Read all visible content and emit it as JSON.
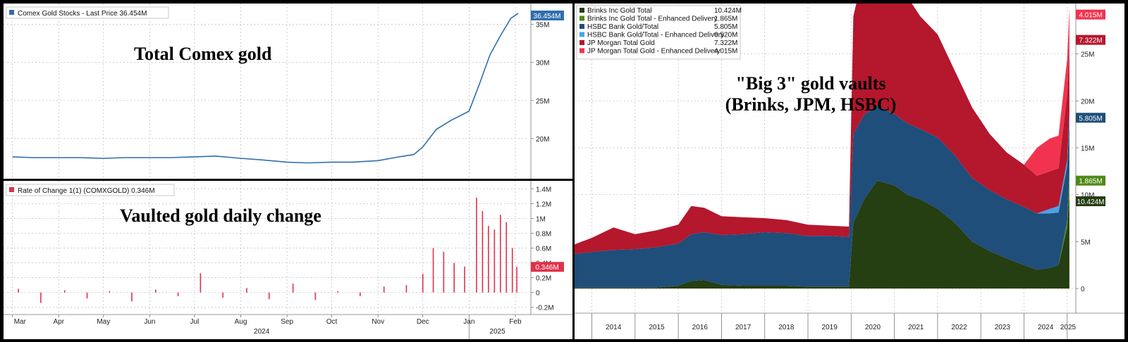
{
  "left_top": {
    "legend": "Comex Gold Stocks - Last Price 36.454M",
    "annotation": "Total Comex gold",
    "last_tag": "36.454M",
    "tag_color": "#2f6fad"
  },
  "left_bottom": {
    "legend": "Rate of Change 1(1) (COMXGOLD) 0.346M",
    "annotation": "Vaulted gold daily change",
    "last_tag": "0.346M",
    "tag_color": "#e0314b"
  },
  "right": {
    "annotation_line1": "\"Big 3\" gold vaults",
    "annotation_line2": "(Brinks, JPM, HSBC)"
  },
  "chart_data": [
    {
      "type": "line",
      "x": [
        "2024-03-01",
        "2024-03-15",
        "2024-04-01",
        "2024-04-15",
        "2024-05-01",
        "2024-05-15",
        "2024-06-01",
        "2024-06-15",
        "2024-07-01",
        "2024-07-15",
        "2024-08-01",
        "2024-08-15",
        "2024-09-01",
        "2024-09-15",
        "2024-10-01",
        "2024-10-15",
        "2024-11-01",
        "2024-11-15",
        "2024-11-25",
        "2024-12-01",
        "2024-12-10",
        "2024-12-20",
        "2025-01-01",
        "2025-01-08",
        "2025-01-15",
        "2025-01-22",
        "2025-01-29",
        "2025-02-03"
      ],
      "series": [
        {
          "name": "Comex Gold Stocks - Last Price",
          "values": [
            17.6,
            17.5,
            17.5,
            17.5,
            17.4,
            17.5,
            17.5,
            17.5,
            17.6,
            17.7,
            17.4,
            17.2,
            16.9,
            16.8,
            16.9,
            16.9,
            17.1,
            17.6,
            17.9,
            18.9,
            21.2,
            22.4,
            23.6,
            27.2,
            31.0,
            33.5,
            35.8,
            36.454
          ]
        }
      ],
      "x_ticks": [
        "Mar",
        "Apr",
        "May",
        "Jun",
        "Jul",
        "Aug",
        "Sep",
        "Oct",
        "Nov",
        "Dec",
        "Jan",
        "Feb"
      ],
      "x_year_labels": [
        "2024",
        "2025"
      ],
      "y_ticks": [
        "20M",
        "25M",
        "30M",
        "35M"
      ],
      "ylim": [
        15,
        37
      ]
    },
    {
      "type": "bar",
      "x": [
        "2024-03-05",
        "2024-03-20",
        "2024-04-05",
        "2024-04-20",
        "2024-05-05",
        "2024-05-20",
        "2024-06-05",
        "2024-06-20",
        "2024-07-05",
        "2024-07-20",
        "2024-08-05",
        "2024-08-20",
        "2024-09-05",
        "2024-09-20",
        "2024-10-05",
        "2024-10-20",
        "2024-11-05",
        "2024-11-20",
        "2024-12-01",
        "2024-12-08",
        "2024-12-15",
        "2024-12-22",
        "2024-12-29",
        "2025-01-06",
        "2025-01-10",
        "2025-01-14",
        "2025-01-18",
        "2025-01-22",
        "2025-01-26",
        "2025-01-30",
        "2025-02-02"
      ],
      "series": [
        {
          "name": "Rate of Change 1(1) (COMXGOLD)",
          "values": [
            0.05,
            -0.14,
            0.03,
            -0.08,
            0.02,
            -0.12,
            0.04,
            -0.05,
            0.26,
            -0.07,
            0.06,
            -0.09,
            0.12,
            -0.1,
            0.02,
            -0.05,
            0.08,
            0.1,
            0.25,
            0.6,
            0.55,
            0.4,
            0.35,
            1.28,
            1.1,
            0.9,
            0.85,
            1.05,
            0.95,
            0.6,
            0.346
          ]
        }
      ],
      "x_ticks": [
        "Mar",
        "Apr",
        "May",
        "Jun",
        "Jul",
        "Aug",
        "Sep",
        "Oct",
        "Nov",
        "Dec",
        "Jan",
        "Feb"
      ],
      "x_year_labels": [
        "2024",
        "2025"
      ],
      "y_ticks": [
        "1.4M",
        "1.2M",
        "1M",
        "0.8M",
        "0.6M",
        "0.4M",
        "0.2M",
        "0",
        "-0.2M"
      ],
      "ylim": [
        -0.25,
        1.45
      ]
    },
    {
      "type": "area",
      "x": [
        2013.6,
        2014.0,
        2014.5,
        2015.0,
        2015.5,
        2016.0,
        2016.3,
        2016.6,
        2017.0,
        2017.5,
        2018.0,
        2018.5,
        2019.0,
        2019.5,
        2019.95,
        2020.05,
        2020.3,
        2020.6,
        2021.0,
        2021.3,
        2021.6,
        2022.0,
        2022.4,
        2022.8,
        2023.2,
        2023.6,
        2024.0,
        2024.3,
        2024.6,
        2024.8,
        2025.0,
        2025.05
      ],
      "series": [
        {
          "name": "Brinks Inc Gold Total",
          "values": [
            0.1,
            0.1,
            0.1,
            0.1,
            0.1,
            0.3,
            0.8,
            0.9,
            0.4,
            0.3,
            0.3,
            0.3,
            0.2,
            0.2,
            0.2,
            7.0,
            9.5,
            11.5,
            11.0,
            10.0,
            9.5,
            8.5,
            7.0,
            5.0,
            4.0,
            3.2,
            2.5,
            2.0,
            2.2,
            2.5,
            6.5,
            10.424
          ]
        },
        {
          "name": "Brinks Inc Gold Total - Enhanced Delivery",
          "values": [
            0,
            0,
            0,
            0,
            0,
            0,
            0,
            0,
            0,
            0,
            0,
            0,
            0,
            0,
            0,
            0,
            0,
            0,
            0,
            0,
            0,
            0,
            0,
            0,
            0,
            0,
            0,
            0,
            0,
            0,
            0.8,
            1.865
          ]
        },
        {
          "name": "HSBC Bank Gold/Total",
          "values": [
            3.6,
            3.8,
            4.0,
            4.1,
            4.3,
            4.5,
            5.0,
            5.1,
            5.3,
            5.5,
            5.7,
            5.6,
            5.4,
            5.4,
            5.3,
            9.5,
            9.0,
            8.0,
            7.6,
            7.6,
            7.5,
            7.6,
            7.2,
            6.8,
            6.5,
            6.3,
            6.2,
            6.0,
            5.8,
            5.6,
            5.8,
            5.805
          ]
        },
        {
          "name": "HSBC Bank Gold/Total - Enhanced Delivery",
          "values": [
            0,
            0,
            0,
            0,
            0,
            0,
            0,
            0,
            0,
            0,
            0,
            0,
            0,
            0,
            0,
            0,
            0,
            0,
            0,
            0,
            0,
            0,
            0,
            0,
            0,
            0,
            0,
            0,
            0.5,
            0.7,
            0.6,
            0.52
          ]
        },
        {
          "name": "JP Morgan Total Gold",
          "values": [
            1.0,
            1.5,
            2.4,
            1.6,
            1.8,
            2.0,
            3.0,
            2.6,
            2.0,
            1.8,
            1.5,
            1.4,
            1.2,
            1.1,
            1.1,
            12.5,
            15.5,
            14.0,
            13.0,
            13.5,
            12.0,
            11.0,
            9.0,
            7.5,
            6.0,
            5.0,
            4.5,
            4.0,
            4.0,
            4.0,
            7.0,
            7.322
          ]
        },
        {
          "name": "JP Morgan Total Gold - Enhanced Delivery",
          "values": [
            0,
            0,
            0,
            0,
            0,
            0,
            0,
            0,
            0,
            0,
            0,
            0,
            0,
            0,
            0,
            0,
            0,
            0,
            0,
            0,
            0,
            0,
            0,
            0,
            0,
            0,
            0,
            3.0,
            3.5,
            3.5,
            3.8,
            4.015
          ]
        }
      ],
      "series_colors": [
        "#253e12",
        "#4d8a16",
        "#1f4e7a",
        "#4aa3e8",
        "#b5172d",
        "#f2334f"
      ],
      "x_ticks": [
        "2014",
        "2015",
        "2016",
        "2017",
        "2018",
        "2019",
        "2020",
        "2021",
        "2022",
        "2023",
        "2024",
        "2025"
      ],
      "y_ticks": [
        "0",
        "5M",
        "10M",
        "15M",
        "20M",
        "25M"
      ],
      "ylim": [
        0,
        30
      ],
      "legend_values": [
        "10.424M",
        "1.865M",
        "5.805M",
        "0.520M",
        "7.322M",
        "4.015M"
      ],
      "tag_labels": [
        "4.015M",
        "7.322M",
        "5.805M",
        "1.865M",
        "10.424M"
      ]
    }
  ]
}
